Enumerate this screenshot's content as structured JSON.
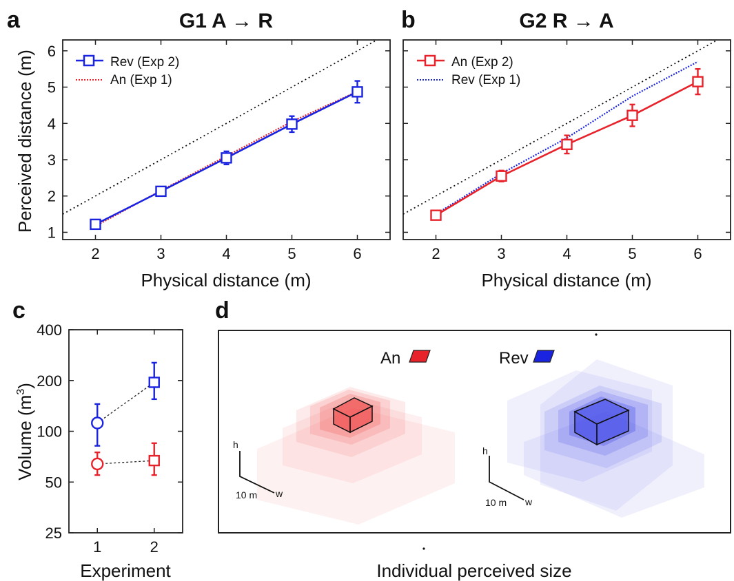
{
  "panels": {
    "a": {
      "letter": "a",
      "title": "G1 A → R"
    },
    "b": {
      "letter": "b",
      "title": "G2 R → A"
    },
    "c": {
      "letter": "c"
    },
    "d": {
      "letter": "d",
      "xlabel": "Individual perceived size",
      "legend": [
        "An",
        "Rev"
      ],
      "scale_label": "10 m",
      "axis_h": "h",
      "axis_w": "w"
    }
  },
  "colors": {
    "red": "#e8222a",
    "blue": "#1a24e0",
    "identity": "#111111"
  },
  "chart_data": [
    {
      "panel": "a",
      "type": "line",
      "title": "G1 A → R",
      "xlabel": "Physical distance (m)",
      "ylabel": "Perceived distance (m)",
      "xlim": [
        1.5,
        6.5
      ],
      "ylim": [
        0.8,
        6.3
      ],
      "xticks": [
        2,
        3,
        4,
        5,
        6
      ],
      "yticks": [
        1,
        2,
        3,
        4,
        5,
        6
      ],
      "legend_position": "top-left",
      "identity_line": true,
      "x": [
        2,
        3,
        4,
        5,
        6
      ],
      "series": [
        {
          "name": "Rev (Exp 2)",
          "color": "blue",
          "style": "solid-square",
          "values": [
            1.22,
            2.13,
            3.05,
            3.98,
            4.87
          ],
          "errors": [
            0.1,
            0.1,
            0.18,
            0.22,
            0.3
          ]
        },
        {
          "name": "An (Exp 1)",
          "color": "red",
          "style": "dotted",
          "values": [
            1.17,
            2.15,
            3.1,
            4.05,
            4.88
          ]
        }
      ]
    },
    {
      "panel": "b",
      "type": "line",
      "title": "G2 R → A",
      "xlabel": "Physical distance (m)",
      "ylabel": "",
      "xlim": [
        1.5,
        6.5
      ],
      "ylim": [
        0.8,
        6.3
      ],
      "xticks": [
        2,
        3,
        4,
        5,
        6
      ],
      "yticks": [
        1,
        2,
        3,
        4,
        5,
        6
      ],
      "legend_position": "top-left",
      "identity_line": true,
      "x": [
        2,
        3,
        4,
        5,
        6
      ],
      "series": [
        {
          "name": "An (Exp 2)",
          "color": "red",
          "style": "solid-square",
          "values": [
            1.47,
            2.55,
            3.42,
            4.22,
            5.15
          ],
          "errors": [
            0.1,
            0.15,
            0.25,
            0.3,
            0.35
          ]
        },
        {
          "name": "Rev (Exp 1)",
          "color": "blue",
          "style": "dotted",
          "values": [
            1.5,
            2.62,
            3.6,
            4.75,
            5.7
          ]
        }
      ]
    },
    {
      "panel": "c",
      "type": "scatter",
      "xlabel": "Experiment",
      "ylabel": "Volume (m³)",
      "ylabel_main": "Volume (m",
      "ylabel_sup": "3",
      "ylabel_end": ")",
      "yscale": "log",
      "xlim": [
        0.5,
        2.5
      ],
      "ylim": [
        25,
        400
      ],
      "xticks": [
        1,
        2
      ],
      "yticks": [
        25,
        50,
        100,
        200,
        400
      ],
      "series": [
        {
          "color": "blue",
          "values": [
            112,
            195
          ],
          "low": [
            82,
            155
          ],
          "high": [
            145,
            255
          ],
          "markers": [
            "circle",
            "square"
          ]
        },
        {
          "color": "red",
          "values": [
            64,
            67
          ],
          "low": [
            55,
            55
          ],
          "high": [
            75,
            85
          ],
          "markers": [
            "circle",
            "square"
          ]
        }
      ]
    }
  ]
}
